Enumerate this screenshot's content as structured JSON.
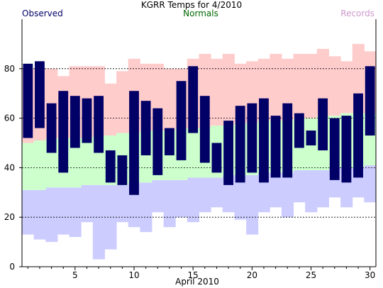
{
  "chart_data": {
    "type": "bar",
    "title": "KGRR Temps for 4/2010",
    "xlabel": "April 2010",
    "ylabel": "",
    "xlim": [
      0.5,
      30.5
    ],
    "ylim": [
      0,
      100
    ],
    "y_ticks": [
      0,
      20,
      40,
      60,
      80
    ],
    "x_ticks": [
      5,
      10,
      15,
      20,
      25,
      30
    ],
    "grid": "dashed horizontal at 20, 40, 60, 80",
    "legend": "top row: Observed (left), Normals (center), Records (right)",
    "colors": {
      "records_fill": "#ffcccc",
      "normals_fill": "#ccffcc",
      "records_low_fill": "#ccccff",
      "observed_fill": "#000066",
      "observed_label": "#000066",
      "normals_label": "#006600",
      "records_label": "#cc99cc",
      "grid": "#000000"
    },
    "days": [
      1,
      2,
      3,
      4,
      5,
      6,
      7,
      8,
      9,
      10,
      11,
      12,
      13,
      14,
      15,
      16,
      17,
      18,
      19,
      20,
      21,
      22,
      23,
      24,
      25,
      26,
      27,
      28,
      29,
      30
    ],
    "series": [
      {
        "name": "Records",
        "high": [
          80,
          80,
          80,
          77,
          81,
          81,
          81,
          74,
          79,
          84,
          82,
          82,
          80,
          80,
          84,
          86,
          84,
          86,
          82,
          83,
          84,
          86,
          84,
          86,
          86,
          88,
          85,
          83,
          90,
          87
        ],
        "low": [
          13,
          11,
          10,
          13,
          12,
          18,
          3,
          7,
          18,
          16,
          14,
          22,
          16,
          20,
          18,
          22,
          24,
          22,
          19,
          13,
          22,
          24,
          20,
          26,
          22,
          24,
          28,
          24,
          28,
          26
        ]
      },
      {
        "name": "Normals",
        "high": [
          50,
          51,
          52,
          52,
          52,
          52,
          53,
          53,
          54,
          54,
          55,
          55,
          55,
          56,
          56,
          56,
          57,
          57,
          58,
          58,
          59,
          59,
          59,
          60,
          60,
          61,
          61,
          62,
          62,
          62
        ],
        "low": [
          31,
          31,
          32,
          32,
          32,
          33,
          33,
          33,
          33,
          34,
          34,
          35,
          35,
          35,
          36,
          36,
          36,
          37,
          37,
          37,
          38,
          38,
          38,
          39,
          39,
          39,
          40,
          40,
          40,
          41
        ]
      },
      {
        "name": "Observed",
        "high": [
          82,
          83,
          66,
          71,
          69,
          68,
          69,
          47,
          45,
          71,
          67,
          64,
          56,
          75,
          81,
          69,
          50,
          59,
          65,
          66,
          68,
          61,
          66,
          62,
          55,
          68,
          60,
          61,
          70,
          81
        ],
        "low": [
          52,
          56,
          46,
          38,
          48,
          50,
          46,
          34,
          33,
          29,
          45,
          37,
          45,
          43,
          54,
          42,
          38,
          33,
          34,
          38,
          34,
          36,
          36,
          48,
          49,
          47,
          35,
          34,
          36,
          53
        ]
      }
    ]
  }
}
